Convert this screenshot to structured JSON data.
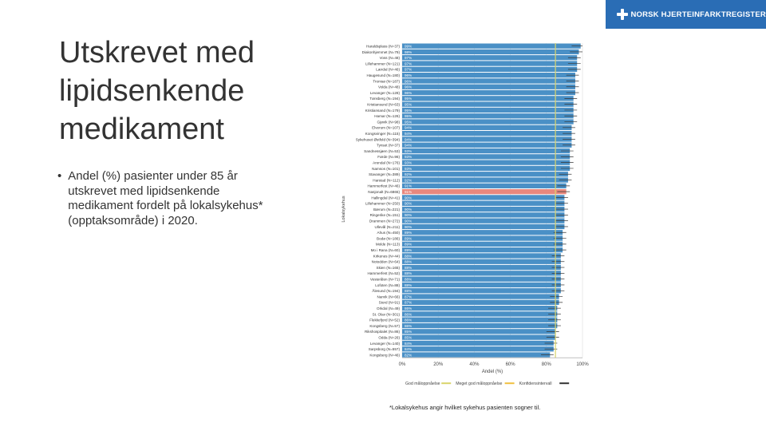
{
  "header": {
    "logo_text": "NORSK HJERTEINFARKTREGISTER"
  },
  "slide": {
    "title": "Utskrevet med lipidsenkende medikament",
    "bullet": "Andel (%) pasienter under 85 år utskrevet med lipidsenkende medikament fordelt på lokalsykehus* (opptaksområde) i 2020.",
    "footnote": "*Lokalsykehus angir hvilket sykehus pasienten sogner til."
  },
  "colors": {
    "bar": "#4a90c6",
    "highlight": "#e8887e",
    "good": "#d9d46a",
    "very_good": "#f0c040",
    "ci": "#333333",
    "logo_bg": "#2a6db5"
  },
  "chart_data": {
    "type": "bar",
    "orientation": "horizontal",
    "xlabel": "Andel (%)",
    "ylabel": "Lokalsykehus",
    "xlim": [
      0,
      100
    ],
    "xticks": [
      "0%",
      "20%",
      "40%",
      "60%",
      "80%",
      "100%"
    ],
    "target_line": 85,
    "categories": [
      "Haraldsplass (N=37)",
      "Diakonhjemmet (N=79)",
      "Voss (N=48)",
      "Lillehammer (N=121)",
      "Lærdal (N=46)",
      "Haugesund (N=180)",
      "Tromsø (N=187)",
      "Volda (N=48)",
      "Levanger (N=128)",
      "Tønsberg (N=194)",
      "Kristiansund (N=63)",
      "Kristiansand (N=179)",
      "Hamar (N=126)",
      "Gjøvik (N=98)",
      "Elverum (N=107)",
      "Kongsvinger (N=115)",
      "Sykehuset Østfold (N=394)",
      "Tynset (N=37)",
      "Sandnessjøen (N=53)",
      "Førde (N=96)",
      "Arendal (N=176)",
      "Namsos (N=101)",
      "Stavanger (N=389)",
      "Harstad (N=112)",
      "Hammerfest (N=46)",
      "Nasjonalt (N=6865)",
      "Hallingdal (N=41)",
      "Lillehammer (N=250)",
      "Bærum (N=221)",
      "Ringerike (N=151)",
      "Drammen (N=272)",
      "Ullevål (N=211)",
      "Ahus (N=450)",
      "Bodø (N=186)",
      "Molde (N=113)",
      "Mo i Rana (N=60)",
      "Kirkenes (N=44)",
      "Notodden (N=64)",
      "Skien (N=165)",
      "Hammerfest (N=52)",
      "Vesterålen (N=71)",
      "Lofoten (N=88)",
      "Ålesund (N=194)",
      "Narvik (N=66)",
      "Stord (N=91)",
      "Orkdal (N=49)",
      "St. Olav (N=301)",
      "Flekkefjord (N=52)",
      "Kongsberg (N=57)",
      "Rikshospitalet (N=86)",
      "Odda (N=26)",
      "Levanger (N=140)",
      "Sarpsborg (N=557)",
      "Kongsberg (N=46)"
    ],
    "values": [
      99,
      98,
      97,
      97,
      97,
      96,
      96,
      96,
      96,
      95,
      95,
      95,
      95,
      95,
      94,
      94,
      94,
      94,
      93,
      93,
      93,
      93,
      92,
      92,
      91,
      91,
      90,
      90,
      90,
      90,
      90,
      90,
      89,
      89,
      89,
      89,
      88,
      88,
      88,
      88,
      88,
      88,
      88,
      87,
      87,
      86,
      86,
      86,
      86,
      85,
      85,
      84,
      84,
      82
    ],
    "highlight_category": "Nasjonalt (N=6865)",
    "legend": [
      {
        "label": "God måloppnåelse",
        "color": "#d9d46a"
      },
      {
        "label": "Meget god måloppnåelse",
        "color": "#f0c040"
      },
      {
        "label": "Konfidensintervall",
        "color": "#333333"
      }
    ]
  }
}
